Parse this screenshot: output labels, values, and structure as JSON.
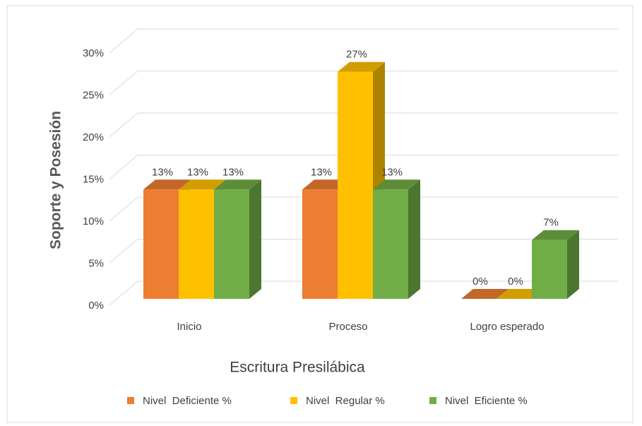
{
  "chart_data": {
    "type": "bar3d",
    "y_label": "Soporte y Posesión",
    "x_label": "Escritura Presilábica",
    "categories": [
      "Inicio",
      "Proceso",
      "Logro esperado"
    ],
    "series": [
      {
        "name": "Nivel  Deficiente %",
        "color": "#ED7D31",
        "values": [
          13,
          13,
          0
        ],
        "value_labels": [
          "13%",
          "13%",
          "0%"
        ]
      },
      {
        "name": "Nivel  Regular %",
        "color": "#FFC000",
        "values": [
          13,
          27,
          0
        ],
        "value_labels": [
          "13%",
          "27%",
          "0%"
        ]
      },
      {
        "name": "Nivel  Eficiente %",
        "color": "#70AD47",
        "values": [
          13,
          13,
          7
        ],
        "value_labels": [
          "13%",
          "13%",
          "7%"
        ]
      }
    ],
    "ylim": [
      0,
      30
    ],
    "yticks": [
      {
        "value": 0,
        "label": "0%"
      },
      {
        "value": 5,
        "label": "5%"
      },
      {
        "value": 10,
        "label": "10%"
      },
      {
        "value": 15,
        "label": "15%"
      },
      {
        "value": 20,
        "label": "20%"
      },
      {
        "value": 25,
        "label": "25%"
      },
      {
        "value": 30,
        "label": "30%"
      }
    ],
    "grid": true,
    "legend": "bottom"
  }
}
